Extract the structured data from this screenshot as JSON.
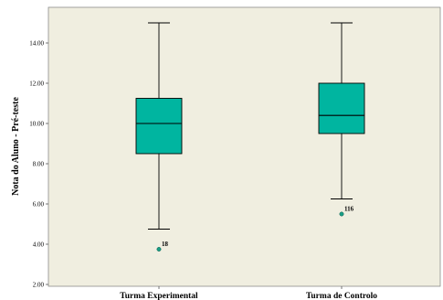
{
  "chart_data": {
    "type": "boxplot",
    "title": "",
    "xlabel": "",
    "ylabel": "Nota do Aluno - Pré-teste",
    "ylim": [
      2.0,
      15.5
    ],
    "yticks": [
      2.0,
      4.0,
      6.0,
      8.0,
      10.0,
      12.0,
      14.0
    ],
    "ytick_labels": [
      "2.00",
      "4.00",
      "6.00",
      "8.00",
      "10.00",
      "12.00",
      "14.00"
    ],
    "grid": false,
    "legend": "none",
    "box_color": "#00b5a0",
    "plot_background": "#f0eee0",
    "outlier_color": "#1a9e85",
    "categories": [
      "Turma Experimental",
      "Turma de Controlo"
    ],
    "boxes": [
      {
        "category": "Turma Experimental",
        "whisker_low": 4.75,
        "q1": 8.5,
        "median": 10.0,
        "q3": 11.25,
        "whisker_high": 15.0,
        "outliers": [
          {
            "value": 3.75,
            "label": "18"
          }
        ]
      },
      {
        "category": "Turma de Controlo",
        "whisker_low": 6.25,
        "q1": 9.5,
        "median": 10.4,
        "q3": 12.0,
        "whisker_high": 15.0,
        "outliers": [
          {
            "value": 5.5,
            "label": "116"
          }
        ]
      }
    ]
  }
}
